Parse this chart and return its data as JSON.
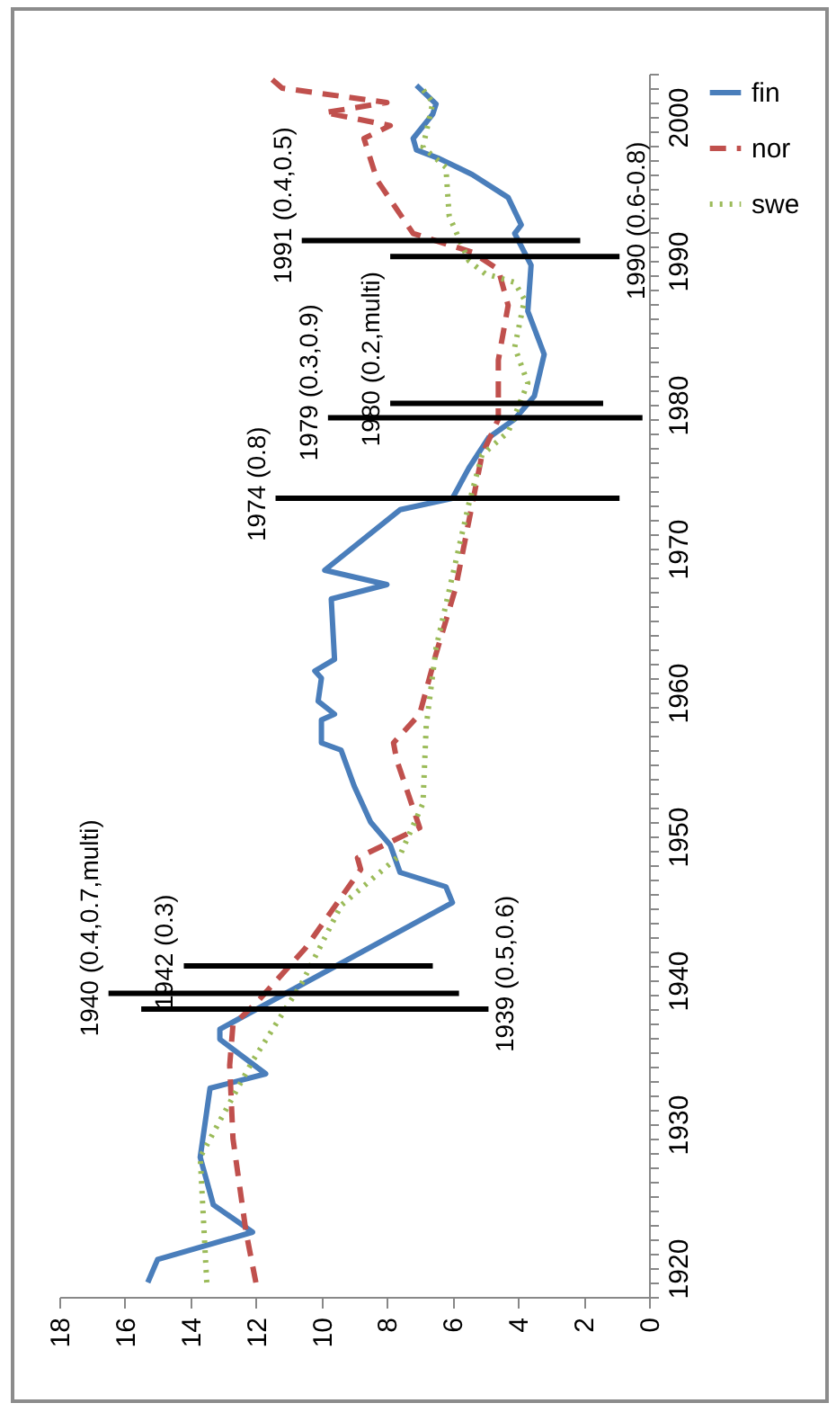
{
  "chart_data": {
    "type": "line",
    "legend": "right",
    "grid": false,
    "xlim": [
      18,
      0
    ],
    "xticks": [
      0,
      2,
      4,
      6,
      8,
      10,
      12,
      14,
      16,
      18
    ],
    "ylim": [
      1918,
      2003
    ],
    "yticks": [
      {
        "value": 1918,
        "label": null
      },
      {
        "value": 1919,
        "label": null
      },
      1920,
      {
        "value": 1921,
        "label": null
      },
      {
        "value": 1922,
        "label": null
      },
      {
        "value": 1923,
        "label": null
      },
      {
        "value": 1924,
        "label": null
      },
      {
        "value": 1925,
        "label": null
      },
      {
        "value": 1926,
        "label": null
      },
      {
        "value": 1927,
        "label": null
      },
      {
        "value": 1928,
        "label": null
      },
      {
        "value": 1929,
        "label": null
      },
      1930,
      {
        "value": 1931,
        "label": null
      },
      {
        "value": 1932,
        "label": null
      },
      {
        "value": 1933,
        "label": null
      },
      {
        "value": 1934,
        "label": null
      },
      {
        "value": 1935,
        "label": null
      },
      {
        "value": 1936,
        "label": null
      },
      {
        "value": 1937,
        "label": null
      },
      {
        "value": 1938,
        "label": null
      },
      {
        "value": 1939,
        "label": null
      },
      1940,
      {
        "value": 1941,
        "label": null
      },
      {
        "value": 1942,
        "label": null
      },
      {
        "value": 1943,
        "label": null
      },
      {
        "value": 1944,
        "label": null
      },
      {
        "value": 1945,
        "label": null
      },
      {
        "value": 1946,
        "label": null
      },
      {
        "value": 1947,
        "label": null
      },
      {
        "value": 1948,
        "label": null
      },
      {
        "value": 1949,
        "label": null
      },
      1950,
      {
        "value": 1951,
        "label": null
      },
      {
        "value": 1952,
        "label": null
      },
      {
        "value": 1953,
        "label": null
      },
      {
        "value": 1954,
        "label": null
      },
      {
        "value": 1955,
        "label": null
      },
      {
        "value": 1956,
        "label": null
      },
      {
        "value": 1957,
        "label": null
      },
      {
        "value": 1958,
        "label": null
      },
      {
        "value": 1959,
        "label": null
      },
      1960,
      {
        "value": 1961,
        "label": null
      },
      {
        "value": 1962,
        "label": null
      },
      {
        "value": 1963,
        "label": null
      },
      {
        "value": 1964,
        "label": null
      },
      {
        "value": 1965,
        "label": null
      },
      {
        "value": 1966,
        "label": null
      },
      {
        "value": 1967,
        "label": null
      },
      {
        "value": 1968,
        "label": null
      },
      {
        "value": 1969,
        "label": null
      },
      1970,
      {
        "value": 1971,
        "label": null
      },
      {
        "value": 1972,
        "label": null
      },
      {
        "value": 1973,
        "label": null
      },
      {
        "value": 1974,
        "label": null
      },
      {
        "value": 1975,
        "label": null
      },
      {
        "value": 1976,
        "label": null
      },
      {
        "value": 1977,
        "label": null
      },
      {
        "value": 1978,
        "label": null
      },
      {
        "value": 1979,
        "label": null
      },
      1980,
      {
        "value": 1981,
        "label": null
      },
      {
        "value": 1982,
        "label": null
      },
      {
        "value": 1983,
        "label": null
      },
      {
        "value": 1984,
        "label": null
      },
      {
        "value": 1985,
        "label": null
      },
      {
        "value": 1986,
        "label": null
      },
      {
        "value": 1987,
        "label": null
      },
      {
        "value": 1988,
        "label": null
      },
      {
        "value": 1989,
        "label": null
      },
      1990,
      {
        "value": 1991,
        "label": null
      },
      {
        "value": 1992,
        "label": null
      },
      {
        "value": 1993,
        "label": null
      },
      {
        "value": 1994,
        "label": null
      },
      {
        "value": 1995,
        "label": null
      },
      {
        "value": 1996,
        "label": null
      },
      {
        "value": 1997,
        "label": null
      },
      {
        "value": 1998,
        "label": null
      },
      {
        "value": 1999,
        "label": null
      },
      2000,
      {
        "value": 2001,
        "label": null
      },
      {
        "value": 2002,
        "label": null
      },
      {
        "value": 2003,
        "label": null
      }
    ],
    "series": [
      {
        "name": "fin",
        "color": "#4a7ebb",
        "line_style": "solid",
        "values": [
          1919,
          1920.6,
          1922.5,
          1924.4,
          1927.7,
          1932.5,
          1933.5,
          1935.9,
          1936.6,
          1945.4,
          1946.5,
          1947.5,
          1949.4,
          1951,
          1953.5,
          1956,
          1956.5,
          1958.1,
          1958.5,
          1959.4,
          1961,
          1961.5,
          1962.3,
          1966.5,
          1967.5,
          1968.5,
          1972.7,
          1973.5,
          1975.6,
          1977.7,
          1979,
          1980.6,
          1983.5,
          1986.5,
          1989.7,
          1991.9,
          1992.5,
          1994.4,
          1996,
          1997.1,
          1997.7,
          1998.5,
          2000.2,
          2000.9,
          2002.2
        ],
        "x": [
          15.3,
          15.0,
          12.1,
          13.3,
          13.7,
          13.4,
          11.7,
          13.1,
          13.1,
          6.0,
          6.2,
          7.6,
          7.9,
          8.5,
          9.0,
          9.4,
          10.0,
          10.0,
          9.6,
          10.1,
          10.0,
          10.2,
          9.6,
          9.7,
          8.0,
          9.9,
          7.6,
          6.0,
          5.5,
          4.9,
          4.1,
          3.5,
          3.2,
          3.7,
          3.6,
          4.1,
          3.9,
          4.3,
          5.4,
          6.4,
          7.1,
          7.2,
          6.6,
          6.5,
          7.1
        ]
      },
      {
        "name": "nor",
        "color": "#c0504d",
        "line_style": "dashed",
        "values": [
          1919,
          1922.5,
          1929,
          1934.1,
          1936.9,
          1938.4,
          1942.2,
          1947.7,
          1948.5,
          1950.6,
          1955.3,
          1956.5,
          1958.5,
          1962.7,
          1967.3,
          1971.9,
          1976.5,
          1979,
          1983.1,
          1986.9,
          1989.4,
          1990.6,
          1991.9,
          1995.6,
          1998.5,
          1999.4,
          2000.3,
          2001,
          2002,
          2003
        ],
        "x": [
          12.0,
          12.3,
          12.7,
          12.8,
          12.7,
          12.0,
          10.5,
          8.8,
          8.9,
          7.0,
          7.7,
          7.8,
          7.0,
          6.5,
          5.9,
          5.5,
          5.1,
          4.6,
          4.6,
          4.3,
          4.6,
          5.4,
          7.2,
          8.3,
          8.7,
          7.9,
          9.9,
          8.0,
          11.2,
          11.7
        ]
      },
      {
        "name": "swe",
        "color": "#9bbb59",
        "line_style": "dotted",
        "values": [
          1919,
          1927.7,
          1929.4,
          1934.4,
          1939.8,
          1945.2,
          1948.7,
          1952.3,
          1957.7,
          1963.1,
          1968.1,
          1973.1,
          1976.5,
          1978.1,
          1981.5,
          1984,
          1987.3,
          1988.5,
          1989.1,
          1990,
          1993.1,
          1996.5,
          1997.9,
          2001,
          2002.2
        ],
        "x": [
          13.5,
          13.7,
          13.3,
          12.1,
          10.6,
          9.4,
          7.6,
          6.9,
          6.8,
          6.5,
          6.0,
          5.5,
          5.1,
          4.3,
          3.7,
          4.1,
          3.8,
          4.1,
          5.0,
          5.5,
          6.1,
          6.2,
          6.9,
          6.6,
          7.0
        ]
      },
      {
        "color": "#000000",
        "line_style": "solid",
        "values": [
          1938,
          1938
        ],
        "x": [
          4.9,
          15.5
        ]
      },
      {
        "color": "#000000",
        "line_style": "solid",
        "values": [
          1939.1,
          1939.1
        ],
        "x": [
          5.8,
          16.5
        ]
      },
      {
        "color": "#000000",
        "line_style": "solid",
        "values": [
          1941,
          1941
        ],
        "x": [
          6.6,
          14.2
        ]
      },
      {
        "color": "#000000",
        "line_style": "solid",
        "values": [
          1973.5,
          1973.5
        ],
        "x": [
          0.9,
          11.4
        ]
      },
      {
        "color": "#000000",
        "line_style": "solid",
        "values": [
          1979.1,
          1979.1
        ],
        "x": [
          0.2,
          9.8
        ]
      },
      {
        "color": "#000000",
        "line_style": "solid",
        "values": [
          1980.1,
          1980.1
        ],
        "x": [
          1.4,
          7.9
        ]
      },
      {
        "color": "#000000",
        "line_style": "solid",
        "values": [
          1990.3,
          1990.3
        ],
        "x": [
          0.9,
          7.9
        ]
      },
      {
        "color": "#000000",
        "line_style": "solid",
        "values": [
          1991.4,
          1991.4
        ],
        "x": [
          2.1,
          10.6
        ]
      }
    ],
    "annotations": [
      {
        "text": "1939 (0.5,0.6)",
        "x": 4.9,
        "y": 1938
      },
      {
        "text": "1940 (0.4,0.7,multi)",
        "x": 16.5,
        "y": 1939.1
      },
      {
        "text": "1942 (0.3)",
        "x": 14.2,
        "y": 1941
      },
      {
        "text": "1974 (0.8)",
        "x": 11.4,
        "y": 1973.5
      },
      {
        "text": "1979 (0.3,0.9)",
        "x": 9.8,
        "y": 1979.1
      },
      {
        "text": "1980 (0.2,multi)",
        "x": 7.9,
        "y": 1980.1
      },
      {
        "text": "1990 (0.6-0.8)",
        "x": 0.9,
        "y": 1990.3
      },
      {
        "text": "1991 (0.4,0.5)",
        "x": 10.6,
        "y": 1991.4
      }
    ]
  }
}
